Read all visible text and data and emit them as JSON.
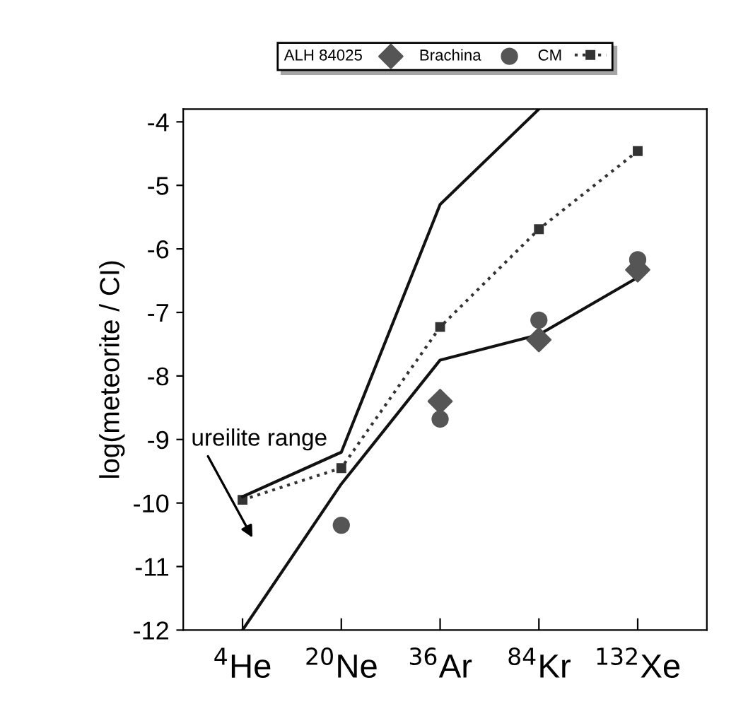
{
  "chart_data": {
    "type": "line",
    "ylabel": "log(meteorite / CI)",
    "categories": [
      "$^{4}$He",
      "$^{20}$Ne",
      "$^{36}$Ar",
      "$^{84}$Kr",
      "$^{132}$Xe"
    ],
    "ylim": [
      -12,
      -3.8
    ],
    "yticks": [
      -4,
      -5,
      -6,
      -7,
      -8,
      -9,
      -10,
      -11,
      -12
    ],
    "legend": "top",
    "grid": false,
    "series": [
      {
        "name": "ALH 84025",
        "type": "scatter",
        "marker": "diamond",
        "color": "#555555",
        "values": [
          null,
          null,
          -8.4,
          -7.43,
          -6.33
        ]
      },
      {
        "name": "Brachina",
        "type": "scatter",
        "marker": "circle",
        "color": "#555555",
        "values": [
          null,
          -10.35,
          -8.68,
          -7.12,
          -6.17
        ]
      },
      {
        "name": "CM",
        "marker": "square",
        "line_style": "dotted",
        "color": "#333333",
        "values": [
          -9.95,
          -9.45,
          -7.23,
          -5.69,
          -4.46
        ]
      },
      {
        "marker": "none",
        "line_style": "solid",
        "color": "#111111",
        "values": [
          -9.9,
          -9.2,
          -5.3,
          -3.8,
          null
        ]
      },
      {
        "marker": "none",
        "line_style": "solid",
        "color": "#111111",
        "values": [
          -12,
          -9.7,
          -7.75,
          -7.35,
          -6.45
        ]
      }
    ],
    "annotations": [
      "ureilite range"
    ]
  }
}
